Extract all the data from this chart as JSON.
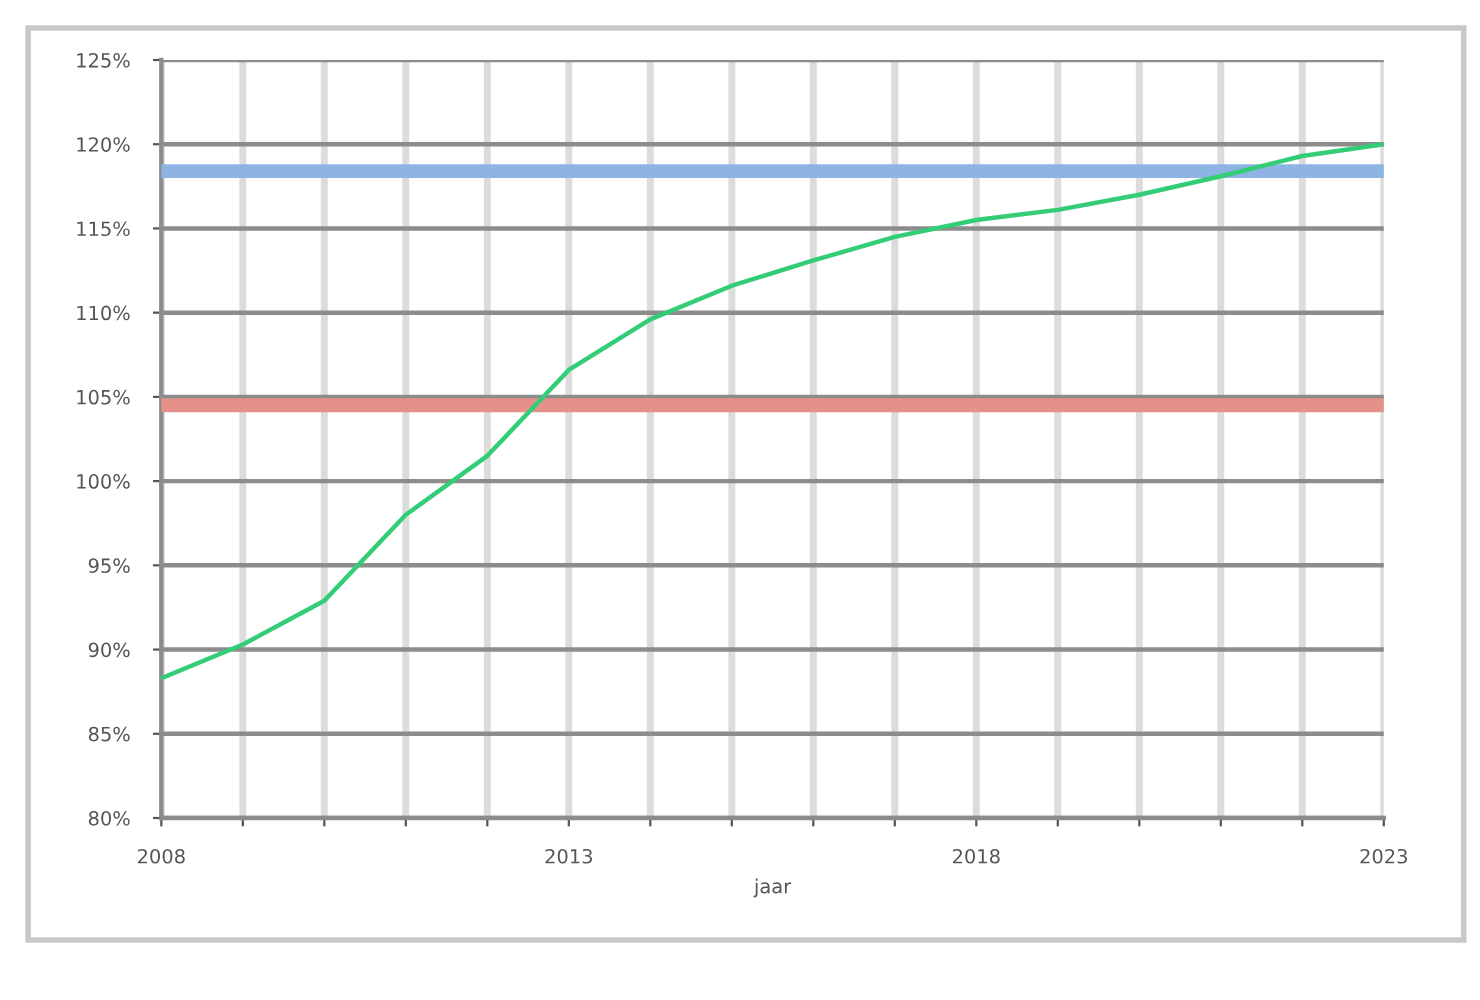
{
  "chart_data": {
    "type": "line",
    "xlabel": "jaar",
    "x": [
      2008,
      2009,
      2010,
      2011,
      2012,
      2013,
      2014,
      2015,
      2016,
      2017,
      2018,
      2019,
      2020,
      2021,
      2022,
      2023
    ],
    "series": [
      {
        "color": "#33cc77",
        "values": [
          88.3,
          90.3,
          92.9,
          98.0,
          101.5,
          106.6,
          109.6,
          111.6,
          113.1,
          114.5,
          115.5,
          116.1,
          117.0,
          118.1,
          119.3,
          120.0
        ]
      }
    ],
    "ref_lines": [
      {
        "axis": "y",
        "value": 118.4,
        "color": "#8db4e2"
      },
      {
        "axis": "y",
        "value": 104.5,
        "color": "#e6908a"
      }
    ],
    "xlim": [
      2008,
      2023
    ],
    "xticks": [
      2008,
      {
        "value": 2009,
        "label": null
      },
      {
        "value": 2010,
        "label": null
      },
      {
        "value": 2011,
        "label": null
      },
      {
        "value": 2012,
        "label": null
      },
      2013,
      {
        "value": 2014,
        "label": null
      },
      {
        "value": 2015,
        "label": null
      },
      {
        "value": 2016,
        "label": null
      },
      {
        "value": 2017,
        "label": null
      },
      2018,
      {
        "value": 2019,
        "label": null
      },
      {
        "value": 2020,
        "label": null
      },
      {
        "value": 2021,
        "label": null
      },
      {
        "value": 2022,
        "label": null
      },
      2023
    ],
    "ylim": [
      80,
      125
    ],
    "yticks": [
      {
        "value": 80,
        "label": "80%"
      },
      {
        "value": 85,
        "label": "85%"
      },
      {
        "value": 90,
        "label": "90%"
      },
      {
        "value": 95,
        "label": "95%"
      },
      {
        "value": 100,
        "label": "100%"
      },
      {
        "value": 105,
        "label": "105%"
      },
      {
        "value": 110,
        "label": "110%"
      },
      {
        "value": 115,
        "label": "115%"
      },
      {
        "value": 120,
        "label": "120%"
      },
      {
        "value": 125,
        "label": "125%"
      }
    ],
    "grid": true,
    "legend": false,
    "marker": "none",
    "line_style": "solid"
  }
}
